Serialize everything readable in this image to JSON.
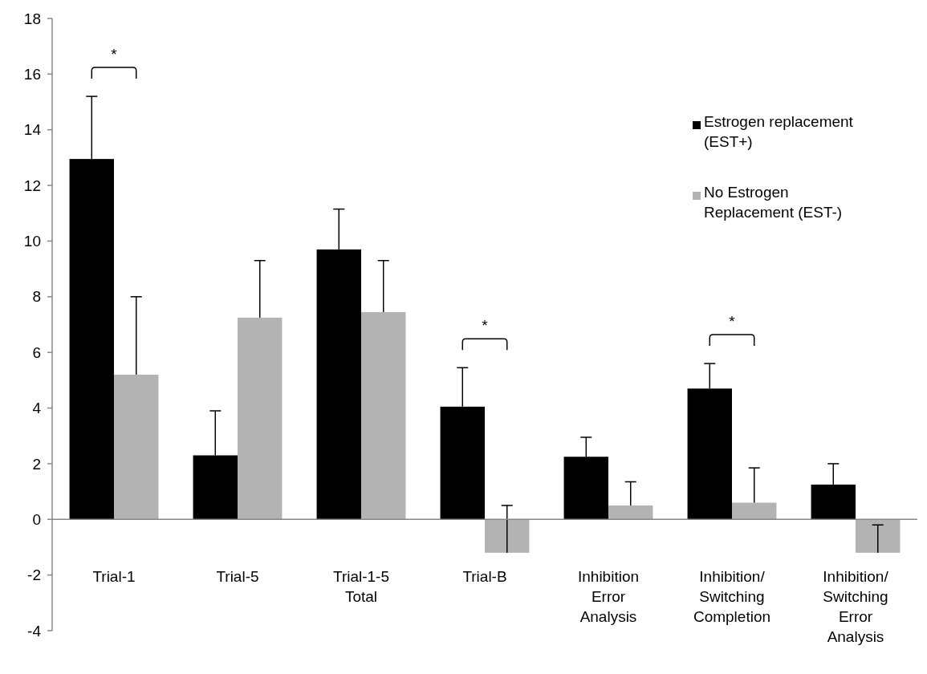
{
  "chart_data": {
    "type": "bar",
    "categories": [
      "Trial-1",
      "Trial-5",
      "Trial-1-5 Total",
      "Trial-B",
      "Inhibition Error Analysis",
      "Inhibition/ Switching Completion",
      "Inhibition/ Switching Error Analysis"
    ],
    "series": [
      {
        "name": "Estrogen replacement (EST+)",
        "color": "#000000",
        "values": [
          12.95,
          2.3,
          9.7,
          4.05,
          2.25,
          4.7,
          1.25
        ],
        "errors": [
          [
            12.95,
            15.2
          ],
          [
            2.3,
            3.9
          ],
          [
            9.7,
            11.15
          ],
          [
            4.05,
            5.45
          ],
          [
            2.25,
            2.95
          ],
          [
            4.7,
            5.6
          ],
          [
            1.25,
            2.0
          ]
        ]
      },
      {
        "name": "No Estrogen Replacement (EST-)",
        "color": "#b3b3b3",
        "values": [
          5.2,
          7.25,
          7.45,
          -1.2,
          0.5,
          0.6,
          -1.2
        ],
        "errors": [
          [
            5.2,
            8.0
          ],
          [
            7.25,
            9.3
          ],
          [
            7.45,
            9.3
          ],
          [
            -1.2,
            0.5
          ],
          [
            0.5,
            1.35
          ],
          [
            0.6,
            1.85
          ],
          [
            -1.2,
            -0.2
          ]
        ]
      }
    ],
    "annotations": [
      "*",
      "*",
      "*"
    ],
    "ylim": [
      -4,
      18
    ],
    "yticks": [
      -4,
      -2,
      0,
      2,
      4,
      6,
      8,
      10,
      12,
      14,
      16,
      18
    ],
    "legend": "top right"
  }
}
